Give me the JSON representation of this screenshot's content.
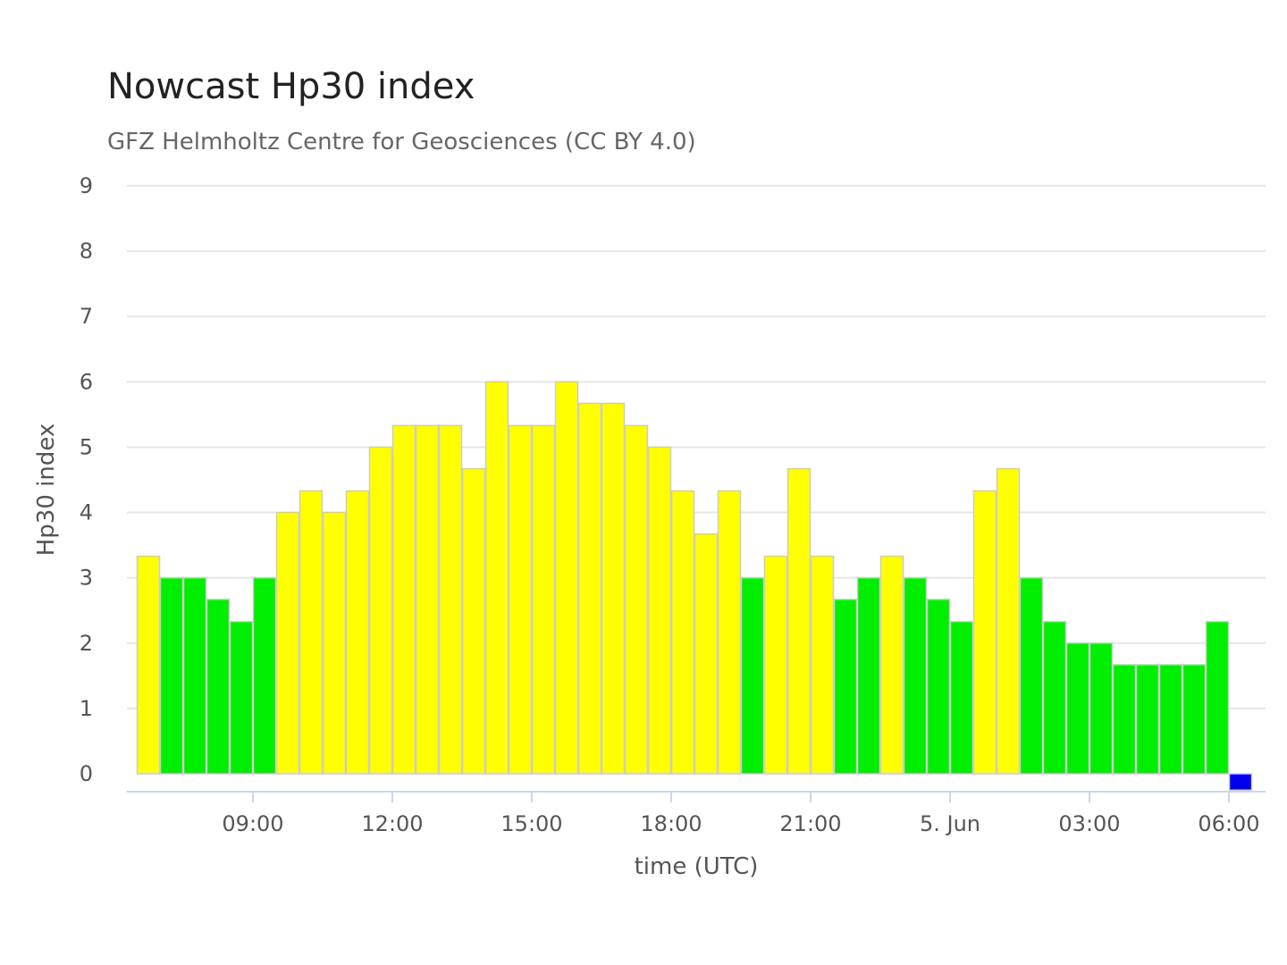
{
  "chart_data": {
    "type": "bar",
    "title": "Nowcast Hp30 index",
    "subtitle": "GFZ Helmholtz Centre for Geosciences (CC BY 4.0)",
    "xlabel": "time (UTC)",
    "ylabel": "Hp30 index",
    "ylim": [
      0,
      9
    ],
    "yticks": [
      0,
      1,
      2,
      3,
      4,
      5,
      6,
      7,
      8,
      9
    ],
    "x_tick_labels": [
      "09:00",
      "12:00",
      "15:00",
      "18:00",
      "21:00",
      "5. Jun",
      "03:00",
      "06:00"
    ],
    "x_tick_times": [
      "2024-06-04 09:00",
      "2024-06-04 12:00",
      "2024-06-04 15:00",
      "2024-06-04 18:00",
      "2024-06-04 21:00",
      "2024-06-05 00:00",
      "2024-06-05 03:00",
      "2024-06-05 06:00"
    ],
    "grid": true,
    "legend": "none",
    "colors": {
      "yellow": "#ffff00",
      "green": "#00ee00",
      "blue": "#0000ee",
      "bar_border": "#cccccc",
      "grid": "#e6e6e6",
      "axis": "#ccd6eb"
    },
    "bars": [
      {
        "start": "2024-06-04 06:30",
        "value": 3.33,
        "color": "yellow"
      },
      {
        "start": "2024-06-04 07:00",
        "value": 3.0,
        "color": "green"
      },
      {
        "start": "2024-06-04 07:30",
        "value": 3.0,
        "color": "green"
      },
      {
        "start": "2024-06-04 08:00",
        "value": 2.67,
        "color": "green"
      },
      {
        "start": "2024-06-04 08:30",
        "value": 2.33,
        "color": "green"
      },
      {
        "start": "2024-06-04 09:00",
        "value": 3.0,
        "color": "green"
      },
      {
        "start": "2024-06-04 09:30",
        "value": 4.0,
        "color": "yellow"
      },
      {
        "start": "2024-06-04 10:00",
        "value": 4.33,
        "color": "yellow"
      },
      {
        "start": "2024-06-04 10:30",
        "value": 4.0,
        "color": "yellow"
      },
      {
        "start": "2024-06-04 11:00",
        "value": 4.33,
        "color": "yellow"
      },
      {
        "start": "2024-06-04 11:30",
        "value": 5.0,
        "color": "yellow"
      },
      {
        "start": "2024-06-04 12:00",
        "value": 5.33,
        "color": "yellow"
      },
      {
        "start": "2024-06-04 12:30",
        "value": 5.33,
        "color": "yellow"
      },
      {
        "start": "2024-06-04 13:00",
        "value": 5.33,
        "color": "yellow"
      },
      {
        "start": "2024-06-04 13:30",
        "value": 4.67,
        "color": "yellow"
      },
      {
        "start": "2024-06-04 14:00",
        "value": 6.0,
        "color": "yellow"
      },
      {
        "start": "2024-06-04 14:30",
        "value": 5.33,
        "color": "yellow"
      },
      {
        "start": "2024-06-04 15:00",
        "value": 5.33,
        "color": "yellow"
      },
      {
        "start": "2024-06-04 15:30",
        "value": 6.0,
        "color": "yellow"
      },
      {
        "start": "2024-06-04 16:00",
        "value": 5.67,
        "color": "yellow"
      },
      {
        "start": "2024-06-04 16:30",
        "value": 5.67,
        "color": "yellow"
      },
      {
        "start": "2024-06-04 17:00",
        "value": 5.33,
        "color": "yellow"
      },
      {
        "start": "2024-06-04 17:30",
        "value": 5.0,
        "color": "yellow"
      },
      {
        "start": "2024-06-04 18:00",
        "value": 4.33,
        "color": "yellow"
      },
      {
        "start": "2024-06-04 18:30",
        "value": 3.67,
        "color": "yellow"
      },
      {
        "start": "2024-06-04 19:00",
        "value": 4.33,
        "color": "yellow"
      },
      {
        "start": "2024-06-04 19:30",
        "value": 3.0,
        "color": "green"
      },
      {
        "start": "2024-06-04 20:00",
        "value": 3.33,
        "color": "yellow"
      },
      {
        "start": "2024-06-04 20:30",
        "value": 4.67,
        "color": "yellow"
      },
      {
        "start": "2024-06-04 21:00",
        "value": 3.33,
        "color": "yellow"
      },
      {
        "start": "2024-06-04 21:30",
        "value": 2.67,
        "color": "green"
      },
      {
        "start": "2024-06-04 22:00",
        "value": 3.0,
        "color": "green"
      },
      {
        "start": "2024-06-04 22:30",
        "value": 3.33,
        "color": "yellow"
      },
      {
        "start": "2024-06-04 23:00",
        "value": 3.0,
        "color": "green"
      },
      {
        "start": "2024-06-04 23:30",
        "value": 2.67,
        "color": "green"
      },
      {
        "start": "2024-06-05 00:00",
        "value": 2.33,
        "color": "green"
      },
      {
        "start": "2024-06-05 00:30",
        "value": 4.33,
        "color": "yellow"
      },
      {
        "start": "2024-06-05 01:00",
        "value": 4.67,
        "color": "yellow"
      },
      {
        "start": "2024-06-05 01:30",
        "value": 3.0,
        "color": "green"
      },
      {
        "start": "2024-06-05 02:00",
        "value": 2.33,
        "color": "green"
      },
      {
        "start": "2024-06-05 02:30",
        "value": 2.0,
        "color": "green"
      },
      {
        "start": "2024-06-05 03:00",
        "value": 2.0,
        "color": "green"
      },
      {
        "start": "2024-06-05 03:30",
        "value": 1.67,
        "color": "green"
      },
      {
        "start": "2024-06-05 04:00",
        "value": 1.67,
        "color": "green"
      },
      {
        "start": "2024-06-05 04:30",
        "value": 1.67,
        "color": "green"
      },
      {
        "start": "2024-06-05 05:00",
        "value": 1.67,
        "color": "green"
      },
      {
        "start": "2024-06-05 05:30",
        "value": 2.33,
        "color": "green"
      },
      {
        "start": "2024-06-05 06:00",
        "value": -0.25,
        "color": "blue"
      }
    ]
  }
}
